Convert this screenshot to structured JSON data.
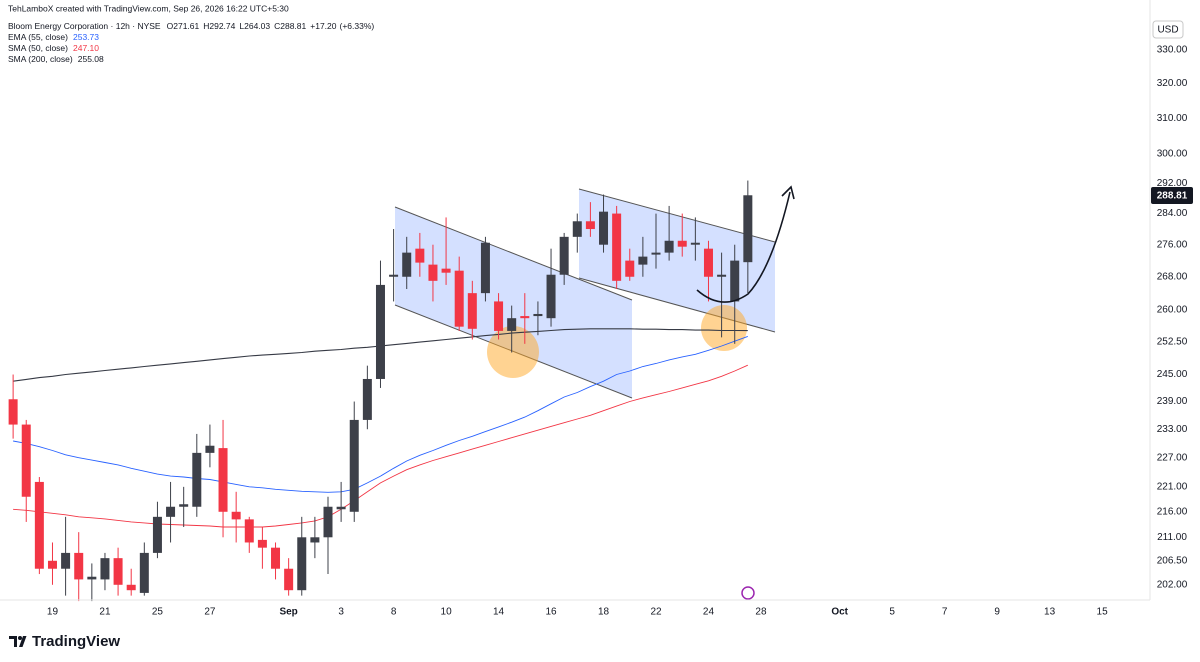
{
  "header": {
    "credit": "TehLamboX created with TradingView.com, Sep 26, 2026 16:22 UTC+5:30",
    "symbol": "Bloom Energy Corporation · 12h · NYSE",
    "ohlc_labels": [
      "O",
      "H",
      "L",
      "C"
    ],
    "change": "+17.20",
    "change_pct": "(+6.33%)",
    "currency": "USD",
    "brand": "TradingView"
  },
  "chart_data": {
    "type": "candlestick",
    "log_scale": true,
    "grid": false,
    "up_color": "#3d4049",
    "down_color": "#f23645",
    "candles": {
      "open": [
        239.5,
        234,
        222,
        206.5,
        205,
        208,
        203,
        203,
        207,
        202,
        200.5,
        208,
        215,
        217,
        217,
        228,
        229,
        216,
        214.5,
        210.5,
        209,
        205,
        201,
        210,
        211,
        216.5,
        216,
        235,
        244,
        268,
        268,
        275,
        271,
        270,
        269.5,
        264,
        264,
        262,
        255,
        258.5,
        258.5,
        258,
        268.5,
        278,
        282,
        276,
        284,
        272,
        271,
        273.5,
        274,
        277,
        276,
        275,
        268,
        262,
        271.61
      ],
      "high": [
        245,
        235,
        223,
        210,
        215,
        212,
        206,
        208,
        209,
        205,
        210,
        218,
        222,
        221,
        232,
        234,
        235,
        220,
        215,
        213,
        210,
        207,
        215,
        215,
        219,
        222,
        239,
        247,
        272,
        280,
        278,
        279,
        276,
        283,
        273,
        267,
        278,
        264,
        261,
        264,
        262,
        275,
        279,
        284,
        287,
        289,
        286,
        275,
        278,
        284,
        286,
        284,
        283,
        277,
        274,
        276,
        292.74
      ],
      "low": [
        231,
        214,
        204,
        202,
        200,
        199,
        199,
        201,
        200,
        200,
        200,
        207,
        210,
        213,
        215,
        225,
        211,
        210,
        208,
        205,
        203,
        200,
        200,
        207,
        204,
        214,
        214,
        233,
        242,
        262,
        265,
        268,
        262,
        266,
        255,
        253,
        262,
        253,
        250,
        252,
        254,
        256,
        266,
        274,
        278,
        274,
        265,
        267,
        268,
        270,
        272,
        273,
        272,
        262,
        253.5,
        252,
        264.03
      ],
      "close": [
        234,
        219,
        205,
        205,
        208,
        203,
        203.5,
        207,
        202,
        201,
        208,
        215,
        217,
        217.5,
        228,
        229.5,
        216,
        214.5,
        210,
        209,
        205,
        201,
        211,
        211,
        217,
        217,
        235,
        244,
        266,
        268.5,
        274,
        271.5,
        267,
        269,
        256,
        255.5,
        276.5,
        255,
        258,
        258,
        259,
        268.5,
        278,
        282,
        280,
        284.5,
        267,
        268,
        273,
        274,
        277,
        275.5,
        276.5,
        268,
        268.5,
        272,
        288.81
      ]
    },
    "series": [
      {
        "name": "EMA (55, close)",
        "color": "#2962ff",
        "values": [
          230.5,
          230,
          229.3,
          228.5,
          227.6,
          227,
          226.5,
          226,
          225.5,
          224.8,
          224.2,
          223.6,
          223.2,
          223,
          222.7,
          222.5,
          222,
          221.5,
          221,
          220.8,
          220.5,
          220.3,
          220.1,
          220,
          219.9,
          220,
          220.5,
          221.8,
          223.2,
          224.8,
          226.3,
          227.5,
          228.5,
          229.6,
          230.6,
          231.5,
          232.5,
          233.5,
          234.5,
          235.6,
          237,
          238.5,
          240,
          241,
          242.3,
          243.5,
          245,
          245.8,
          246.8,
          247.5,
          248.3,
          249,
          249.6,
          250.5,
          251.5,
          252.6,
          253.73
        ]
      },
      {
        "name": "SMA (50, close)",
        "color": "#f23645",
        "last_value_label": "247.10",
        "values": [
          216.5,
          216.3,
          216,
          215.7,
          215.4,
          215,
          214.8,
          214.6,
          214.3,
          214,
          213.8,
          213.6,
          213.5,
          213.4,
          213.3,
          213.2,
          213,
          213,
          213,
          213,
          213.2,
          213.5,
          213.8,
          214.2,
          215,
          216.5,
          218.2,
          220,
          221.8,
          223.2,
          224.5,
          225.5,
          226.4,
          227.2,
          228,
          228.8,
          229.6,
          230.4,
          231.2,
          232,
          232.8,
          233.6,
          234.4,
          235.2,
          236,
          237,
          238,
          239,
          239.8,
          240.5,
          241.2,
          242,
          242.8,
          243.6,
          244.6,
          245.8,
          247.1
        ]
      },
      {
        "name": "SMA (200, close)",
        "color": "#363a45",
        "values": [
          243.5,
          243.9,
          244.3,
          244.6,
          245,
          245.3,
          245.6,
          245.9,
          246.2,
          246.5,
          246.8,
          247.1,
          247.4,
          247.7,
          248,
          248.3,
          248.6,
          248.9,
          249.2,
          249.4,
          249.6,
          249.8,
          250,
          250.3,
          250.5,
          250.7,
          251,
          251.2,
          251.5,
          251.8,
          252.1,
          252.4,
          252.7,
          253,
          253.3,
          253.6,
          253.9,
          254.2,
          254.5,
          254.7,
          254.9,
          255.1,
          255.3,
          255.4,
          255.5,
          255.5,
          255.5,
          255.5,
          255.4,
          255.4,
          255.3,
          255.3,
          255.2,
          255.2,
          255.1,
          255.1,
          255.08
        ]
      }
    ],
    "xlim": [
      -1,
      86.5
    ],
    "xticks": [
      {
        "value": 3,
        "label": "19"
      },
      {
        "value": 7,
        "label": "21"
      },
      {
        "value": 11,
        "label": "25"
      },
      {
        "value": 15,
        "label": "27"
      },
      {
        "value": 21,
        "label": "Sep"
      },
      {
        "value": 25,
        "label": "3"
      },
      {
        "value": 29,
        "label": "8"
      },
      {
        "value": 33,
        "label": "10"
      },
      {
        "value": 37,
        "label": "14"
      },
      {
        "value": 41,
        "label": "16"
      },
      {
        "value": 45,
        "label": "18"
      },
      {
        "value": 49,
        "label": "22"
      },
      {
        "value": 53,
        "label": "24"
      },
      {
        "value": 57,
        "label": "28"
      },
      {
        "value": 63,
        "label": "Oct"
      },
      {
        "value": 67,
        "label": "5"
      },
      {
        "value": 71,
        "label": "7"
      },
      {
        "value": 75,
        "label": "9"
      },
      {
        "value": 79,
        "label": "13"
      },
      {
        "value": 83,
        "label": "15"
      }
    ],
    "ylim": [
      199.2,
      345.5
    ],
    "yticks": [
      {
        "value": 330,
        "label": "330.00"
      },
      {
        "value": 320,
        "label": "320.00"
      },
      {
        "value": 310,
        "label": "310.00"
      },
      {
        "value": 300,
        "label": "300.00"
      },
      {
        "value": 292,
        "label": "292.00"
      },
      {
        "value": 284,
        "label": "284.00"
      },
      {
        "value": 276,
        "label": "276.00"
      },
      {
        "value": 268,
        "label": "268.00"
      },
      {
        "value": 260,
        "label": "260.00"
      },
      {
        "value": 252.5,
        "label": "252.50"
      },
      {
        "value": 245,
        "label": "245.00"
      },
      {
        "value": 239,
        "label": "239.00"
      },
      {
        "value": 233,
        "label": "233.00"
      },
      {
        "value": 227,
        "label": "227.00"
      },
      {
        "value": 221,
        "label": "221.00"
      },
      {
        "value": 216,
        "label": "216.00"
      },
      {
        "value": 211,
        "label": "211.00"
      },
      {
        "value": 206.5,
        "label": "206.50"
      },
      {
        "value": 202,
        "label": "202.00"
      }
    ]
  }
}
